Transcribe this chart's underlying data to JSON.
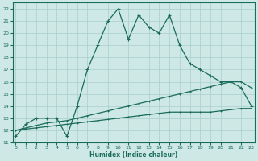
{
  "xlabel": "Humidex (Indice chaleur)",
  "bg_color": "#cde8e5",
  "grid_color": "#aacfcc",
  "line_color": "#1a6b5a",
  "x_ticks": [
    0,
    1,
    2,
    3,
    4,
    5,
    6,
    7,
    8,
    9,
    10,
    11,
    12,
    13,
    14,
    15,
    16,
    17,
    18,
    19,
    20,
    21,
    22,
    23
  ],
  "y_ticks": [
    11,
    12,
    13,
    14,
    15,
    16,
    17,
    18,
    19,
    20,
    21,
    22
  ],
  "xlim": [
    -0.3,
    23.3
  ],
  "ylim": [
    11,
    22.5
  ],
  "line1_x": [
    0,
    1,
    2,
    3,
    4,
    5,
    6,
    7,
    8,
    9,
    10,
    11,
    12,
    13,
    14,
    15,
    16,
    17,
    18,
    19,
    20,
    21,
    22,
    23
  ],
  "line1_y": [
    11.5,
    12.5,
    13.0,
    13.0,
    13.0,
    11.5,
    14.0,
    17.0,
    19.0,
    21.0,
    22.0,
    19.5,
    21.5,
    20.5,
    20.0,
    21.5,
    19.0,
    17.5,
    17.0,
    16.5,
    16.0,
    16.0,
    15.5,
    14.0
  ],
  "line2_x": [
    0,
    1,
    2,
    3,
    4,
    5,
    6,
    7,
    8,
    9,
    10,
    11,
    12,
    13,
    14,
    15,
    16,
    17,
    18,
    19,
    20,
    21,
    22,
    23
  ],
  "line2_y": [
    12.0,
    12.2,
    12.4,
    12.6,
    12.7,
    12.8,
    13.0,
    13.2,
    13.4,
    13.6,
    13.8,
    14.0,
    14.2,
    14.4,
    14.6,
    14.8,
    15.0,
    15.2,
    15.4,
    15.6,
    15.8,
    16.0,
    16.0,
    15.5
  ],
  "line3_x": [
    0,
    1,
    2,
    3,
    4,
    5,
    6,
    7,
    8,
    9,
    10,
    11,
    12,
    13,
    14,
    15,
    16,
    17,
    18,
    19,
    20,
    21,
    22,
    23
  ],
  "line3_y": [
    12.0,
    12.1,
    12.2,
    12.3,
    12.4,
    12.5,
    12.6,
    12.7,
    12.8,
    12.9,
    13.0,
    13.1,
    13.2,
    13.3,
    13.4,
    13.5,
    13.5,
    13.5,
    13.5,
    13.5,
    13.6,
    13.7,
    13.8,
    13.8
  ]
}
